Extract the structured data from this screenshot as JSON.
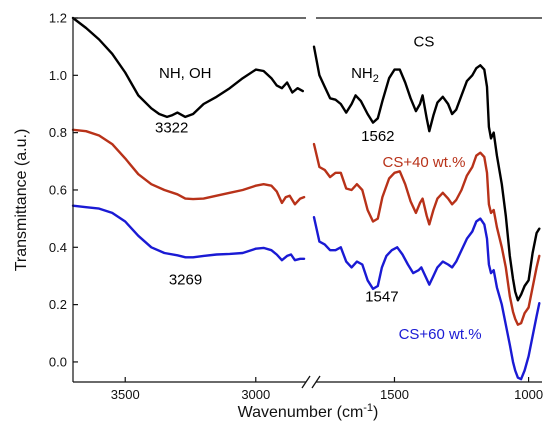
{
  "chart_data": {
    "type": "line",
    "xlabel": "Wavenumber (cm",
    "xlabel_sup": "-1",
    "xlabel_end": ")",
    "ylabel": "Transmittance (a.u.)",
    "ylim": [
      -0.07,
      1.2
    ],
    "y_ticks": [
      "0.0",
      "0.2",
      "0.4",
      "0.6",
      "0.8",
      "1.0",
      "1.2"
    ],
    "y_tick_values": [
      0.0,
      0.2,
      0.4,
      0.6,
      0.8,
      1.0,
      1.2
    ],
    "x_axis_break": true,
    "x_left_range": [
      3700,
      2800
    ],
    "x_left_ticks": [
      "3500",
      "3000"
    ],
    "x_left_tick_values": [
      3500,
      3000
    ],
    "x_right_range": [
      1800,
      950
    ],
    "x_right_ticks": [
      "1500",
      "1000"
    ],
    "x_right_tick_values": [
      1500,
      1000
    ],
    "series": [
      {
        "name": "CS",
        "color": "#000000",
        "left": [
          [
            3700,
            1.2
          ],
          [
            3650,
            1.165
          ],
          [
            3600,
            1.125
          ],
          [
            3550,
            1.075
          ],
          [
            3500,
            1.01
          ],
          [
            3450,
            0.93
          ],
          [
            3400,
            0.885
          ],
          [
            3370,
            0.865
          ],
          [
            3340,
            0.855
          ],
          [
            3322,
            0.86
          ],
          [
            3300,
            0.87
          ],
          [
            3270,
            0.855
          ],
          [
            3240,
            0.865
          ],
          [
            3200,
            0.9
          ],
          [
            3150,
            0.925
          ],
          [
            3100,
            0.955
          ],
          [
            3050,
            0.99
          ],
          [
            3000,
            1.02
          ],
          [
            2970,
            1.015
          ],
          [
            2940,
            0.99
          ],
          [
            2920,
            0.965
          ],
          [
            2900,
            0.955
          ],
          [
            2880,
            0.975
          ],
          [
            2860,
            0.94
          ],
          [
            2840,
            0.955
          ],
          [
            2820,
            0.945
          ]
        ],
        "right": [
          [
            1800,
            1.1
          ],
          [
            1780,
            1.0
          ],
          [
            1760,
            0.96
          ],
          [
            1740,
            0.92
          ],
          [
            1720,
            0.915
          ],
          [
            1700,
            0.9
          ],
          [
            1680,
            0.87
          ],
          [
            1660,
            0.9
          ],
          [
            1645,
            0.93
          ],
          [
            1625,
            0.91
          ],
          [
            1600,
            0.865
          ],
          [
            1580,
            0.835
          ],
          [
            1562,
            0.85
          ],
          [
            1545,
            0.91
          ],
          [
            1520,
            0.99
          ],
          [
            1500,
            1.02
          ],
          [
            1480,
            1.02
          ],
          [
            1460,
            0.975
          ],
          [
            1440,
            0.92
          ],
          [
            1420,
            0.875
          ],
          [
            1405,
            0.9
          ],
          [
            1395,
            0.93
          ],
          [
            1380,
            0.85
          ],
          [
            1370,
            0.805
          ],
          [
            1355,
            0.86
          ],
          [
            1340,
            0.905
          ],
          [
            1320,
            0.925
          ],
          [
            1300,
            0.9
          ],
          [
            1285,
            0.865
          ],
          [
            1270,
            0.88
          ],
          [
            1250,
            0.93
          ],
          [
            1230,
            0.98
          ],
          [
            1210,
            1.0
          ],
          [
            1195,
            1.025
          ],
          [
            1180,
            1.035
          ],
          [
            1165,
            1.02
          ],
          [
            1155,
            0.96
          ],
          [
            1148,
            0.82
          ],
          [
            1140,
            0.78
          ],
          [
            1130,
            0.8
          ],
          [
            1118,
            0.72
          ],
          [
            1100,
            0.62
          ],
          [
            1085,
            0.51
          ],
          [
            1070,
            0.37
          ],
          [
            1058,
            0.29
          ],
          [
            1050,
            0.245
          ],
          [
            1040,
            0.215
          ],
          [
            1028,
            0.235
          ],
          [
            1015,
            0.265
          ],
          [
            1000,
            0.285
          ],
          [
            985,
            0.38
          ],
          [
            970,
            0.45
          ],
          [
            960,
            0.465
          ]
        ]
      },
      {
        "name": "CS+40 wt.%",
        "color": "#b83219",
        "left": [
          [
            3700,
            0.81
          ],
          [
            3650,
            0.805
          ],
          [
            3600,
            0.79
          ],
          [
            3550,
            0.76
          ],
          [
            3500,
            0.71
          ],
          [
            3450,
            0.655
          ],
          [
            3400,
            0.62
          ],
          [
            3350,
            0.6
          ],
          [
            3300,
            0.585
          ],
          [
            3270,
            0.57
          ],
          [
            3240,
            0.568
          ],
          [
            3200,
            0.57
          ],
          [
            3150,
            0.58
          ],
          [
            3100,
            0.59
          ],
          [
            3050,
            0.6
          ],
          [
            3000,
            0.615
          ],
          [
            2970,
            0.62
          ],
          [
            2940,
            0.615
          ],
          [
            2920,
            0.595
          ],
          [
            2900,
            0.555
          ],
          [
            2885,
            0.575
          ],
          [
            2870,
            0.58
          ],
          [
            2850,
            0.55
          ],
          [
            2830,
            0.57
          ],
          [
            2815,
            0.575
          ]
        ],
        "right": [
          [
            1800,
            0.76
          ],
          [
            1780,
            0.68
          ],
          [
            1760,
            0.67
          ],
          [
            1740,
            0.645
          ],
          [
            1720,
            0.66
          ],
          [
            1700,
            0.66
          ],
          [
            1680,
            0.605
          ],
          [
            1660,
            0.6
          ],
          [
            1640,
            0.62
          ],
          [
            1620,
            0.6
          ],
          [
            1600,
            0.53
          ],
          [
            1580,
            0.49
          ],
          [
            1562,
            0.5
          ],
          [
            1545,
            0.575
          ],
          [
            1520,
            0.64
          ],
          [
            1500,
            0.66
          ],
          [
            1480,
            0.665
          ],
          [
            1460,
            0.62
          ],
          [
            1440,
            0.56
          ],
          [
            1420,
            0.52
          ],
          [
            1405,
            0.555
          ],
          [
            1395,
            0.57
          ],
          [
            1380,
            0.51
          ],
          [
            1370,
            0.48
          ],
          [
            1355,
            0.53
          ],
          [
            1340,
            0.57
          ],
          [
            1320,
            0.59
          ],
          [
            1300,
            0.57
          ],
          [
            1285,
            0.55
          ],
          [
            1270,
            0.565
          ],
          [
            1250,
            0.6
          ],
          [
            1230,
            0.65
          ],
          [
            1210,
            0.68
          ],
          [
            1195,
            0.72
          ],
          [
            1180,
            0.73
          ],
          [
            1165,
            0.715
          ],
          [
            1155,
            0.66
          ],
          [
            1148,
            0.55
          ],
          [
            1140,
            0.52
          ],
          [
            1130,
            0.53
          ],
          [
            1118,
            0.47
          ],
          [
            1100,
            0.4
          ],
          [
            1085,
            0.33
          ],
          [
            1070,
            0.23
          ],
          [
            1058,
            0.175
          ],
          [
            1050,
            0.15
          ],
          [
            1040,
            0.13
          ],
          [
            1028,
            0.135
          ],
          [
            1015,
            0.17
          ],
          [
            1000,
            0.19
          ],
          [
            985,
            0.26
          ],
          [
            970,
            0.33
          ],
          [
            960,
            0.37
          ]
        ]
      },
      {
        "name": "CS+60 wt.%",
        "color": "#1a1ad4",
        "left": [
          [
            3700,
            0.545
          ],
          [
            3650,
            0.54
          ],
          [
            3600,
            0.535
          ],
          [
            3550,
            0.52
          ],
          [
            3500,
            0.49
          ],
          [
            3450,
            0.44
          ],
          [
            3400,
            0.4
          ],
          [
            3350,
            0.38
          ],
          [
            3300,
            0.372
          ],
          [
            3269,
            0.365
          ],
          [
            3240,
            0.365
          ],
          [
            3200,
            0.37
          ],
          [
            3150,
            0.375
          ],
          [
            3100,
            0.377
          ],
          [
            3050,
            0.38
          ],
          [
            3000,
            0.395
          ],
          [
            2970,
            0.398
          ],
          [
            2940,
            0.39
          ],
          [
            2920,
            0.375
          ],
          [
            2900,
            0.355
          ],
          [
            2880,
            0.37
          ],
          [
            2865,
            0.375
          ],
          [
            2850,
            0.355
          ],
          [
            2830,
            0.36
          ],
          [
            2815,
            0.36
          ]
        ],
        "right": [
          [
            1800,
            0.505
          ],
          [
            1780,
            0.42
          ],
          [
            1760,
            0.41
          ],
          [
            1740,
            0.39
          ],
          [
            1720,
            0.39
          ],
          [
            1700,
            0.4
          ],
          [
            1680,
            0.35
          ],
          [
            1660,
            0.33
          ],
          [
            1640,
            0.35
          ],
          [
            1620,
            0.34
          ],
          [
            1600,
            0.285
          ],
          [
            1580,
            0.255
          ],
          [
            1562,
            0.265
          ],
          [
            1547,
            0.33
          ],
          [
            1530,
            0.37
          ],
          [
            1510,
            0.39
          ],
          [
            1490,
            0.4
          ],
          [
            1470,
            0.375
          ],
          [
            1450,
            0.34
          ],
          [
            1430,
            0.31
          ],
          [
            1410,
            0.32
          ],
          [
            1400,
            0.33
          ],
          [
            1385,
            0.3
          ],
          [
            1370,
            0.27
          ],
          [
            1355,
            0.3
          ],
          [
            1340,
            0.33
          ],
          [
            1320,
            0.35
          ],
          [
            1300,
            0.34
          ],
          [
            1285,
            0.33
          ],
          [
            1270,
            0.35
          ],
          [
            1250,
            0.39
          ],
          [
            1230,
            0.43
          ],
          [
            1210,
            0.455
          ],
          [
            1195,
            0.49
          ],
          [
            1180,
            0.5
          ],
          [
            1165,
            0.48
          ],
          [
            1155,
            0.43
          ],
          [
            1148,
            0.34
          ],
          [
            1140,
            0.31
          ],
          [
            1130,
            0.32
          ],
          [
            1118,
            0.26
          ],
          [
            1100,
            0.2
          ],
          [
            1085,
            0.13
          ],
          [
            1070,
            0.06
          ],
          [
            1058,
            0.0
          ],
          [
            1050,
            -0.03
          ],
          [
            1040,
            -0.055
          ],
          [
            1028,
            -0.06
          ],
          [
            1015,
            -0.03
          ],
          [
            1000,
            0.02
          ],
          [
            985,
            0.09
          ],
          [
            970,
            0.16
          ],
          [
            960,
            0.205
          ]
        ]
      }
    ],
    "annotations": [
      {
        "text": "NH, OH",
        "x": 3270,
        "y": 0.99,
        "segment": "left",
        "color": "#000000",
        "anchor": "middle"
      },
      {
        "text": "3322",
        "x": 3322,
        "y": 0.8,
        "segment": "left",
        "color": "#000000",
        "anchor": "middle"
      },
      {
        "text": "3269",
        "x": 3269,
        "y": 0.27,
        "segment": "left",
        "color": "#000000",
        "anchor": "middle"
      },
      {
        "text": "NH",
        "sub": "2",
        "x": 1610,
        "y": 0.99,
        "segment": "right",
        "color": "#000000",
        "anchor": "middle"
      },
      {
        "text": "CS",
        "x": 1390,
        "y": 1.1,
        "segment": "right",
        "color": "#000000",
        "anchor": "middle"
      },
      {
        "text": "1562",
        "x": 1562,
        "y": 0.77,
        "segment": "right",
        "color": "#000000",
        "anchor": "middle"
      },
      {
        "text": "CS+40 wt.%",
        "x": 1390,
        "y": 0.68,
        "segment": "right",
        "color": "#b83219",
        "anchor": "middle"
      },
      {
        "text": "1547",
        "x": 1547,
        "y": 0.21,
        "segment": "right",
        "color": "#000000",
        "anchor": "middle"
      },
      {
        "text": "CS+60 wt.%",
        "x": 1330,
        "y": 0.08,
        "segment": "right",
        "color": "#1a1ad4",
        "anchor": "middle"
      }
    ]
  }
}
